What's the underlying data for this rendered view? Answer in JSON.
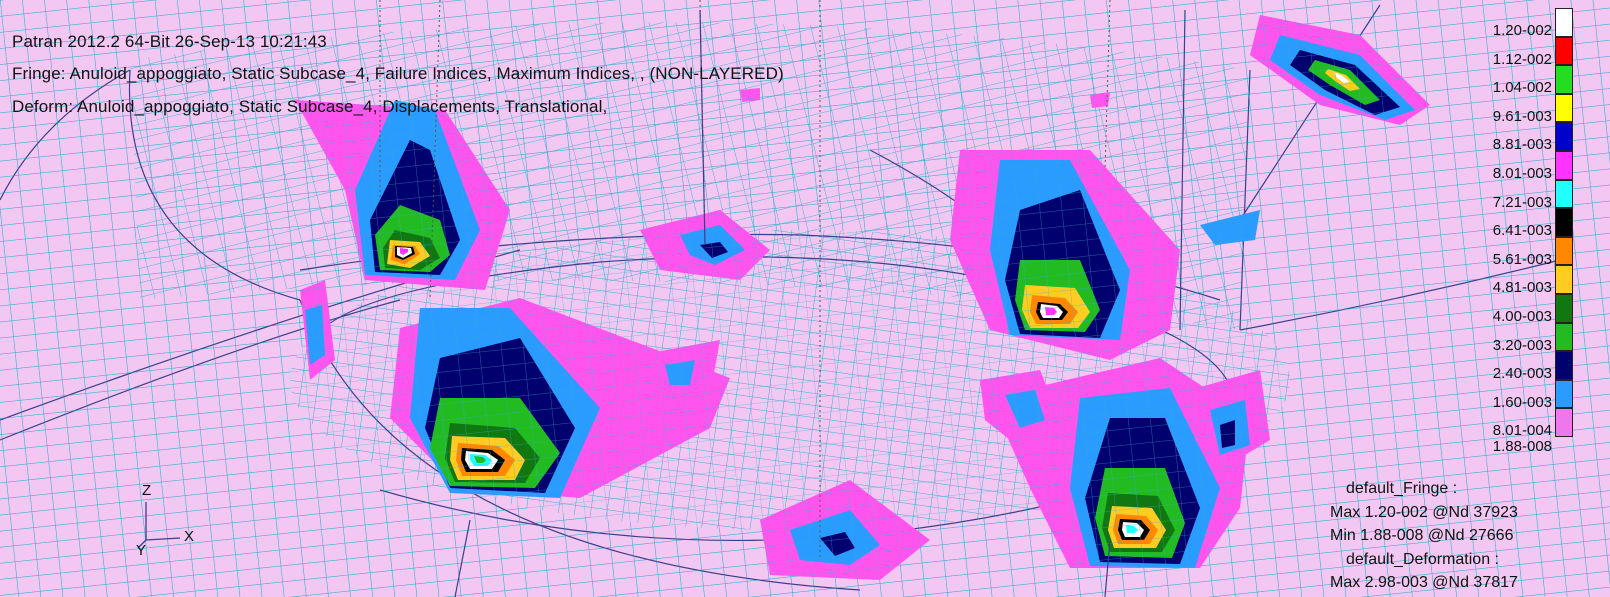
{
  "header": {
    "title_line": "Patran 2012.2 64-Bit 26-Sep-13 10:21:43",
    "fringe_line": "Fringe: Anuloid_appoggiato, Static Subcase_4, Failure Indices, Maximum Indices, , (NON-LAYERED)",
    "deform_line": "Deform: Anuloid_appoggiato, Static Subcase_4, Displacements, Translational,"
  },
  "legend": {
    "ticks": [
      "1.20-002",
      "1.12-002",
      "1.04-002",
      "9.61-003",
      "8.81-003",
      "8.01-003",
      "7.21-003",
      "6.41-003",
      "5.61-003",
      "4.81-003",
      "4.00-003",
      "3.20-003",
      "2.40-003",
      "1.60-003",
      "8.01-004",
      "1.88-008"
    ],
    "colors": [
      "#ffffff",
      "#ff0000",
      "#22dd22",
      "#ffff00",
      "#0000cc",
      "#ff33ff",
      "#22ffff",
      "#000000",
      "#ff8800",
      "#ffcc22",
      "#117711",
      "#22bb22",
      "#00006e",
      "#2a9bff",
      "#ee77ee"
    ]
  },
  "summary": {
    "fringe_title": "default_Fringe :",
    "fringe_max": "Max 1.20-002 @Nd 37923",
    "fringe_min": "Min 1.88-008 @Nd 27666",
    "deform_title": "default_Deformation :",
    "deform_max": "Max 2.98-003 @Nd 37817"
  },
  "triad": {
    "z": "Z",
    "x": "X",
    "y": "Y"
  },
  "colors": {
    "background": "#f2c8f2",
    "mesh_lines": "#3aaed0",
    "edge_lines": "#3a3f8a",
    "magenta": "#ff55ee",
    "blue": "#2a9bff",
    "navy": "#00006e",
    "green": "#22bb22",
    "dark_green": "#117711",
    "yellow": "#ffcc22",
    "orange": "#ff8800",
    "black": "#000000",
    "cyan": "#22ffff",
    "white": "#ffffff"
  }
}
